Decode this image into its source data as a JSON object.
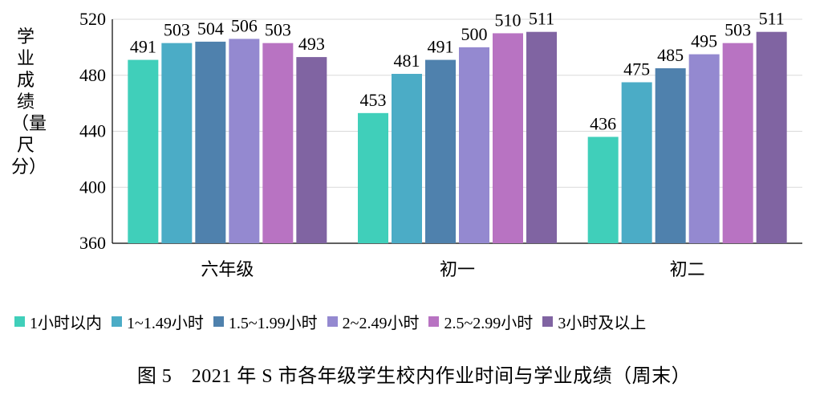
{
  "chart_data": {
    "type": "bar",
    "categories": [
      "六年级",
      "初一",
      "初二"
    ],
    "series": [
      {
        "name": "1小时以内",
        "color": "#40CFBA",
        "values": [
          491,
          453,
          436
        ]
      },
      {
        "name": "1~1.49小时",
        "color": "#4BACC6",
        "values": [
          503,
          481,
          475
        ]
      },
      {
        "name": "1.5~1.99小时",
        "color": "#4F81AD",
        "values": [
          504,
          491,
          485
        ]
      },
      {
        "name": "2~2.49小时",
        "color": "#9489D0",
        "values": [
          506,
          500,
          495
        ]
      },
      {
        "name": "2.5~2.99小时",
        "color": "#B873C2",
        "values": [
          503,
          510,
          503
        ]
      },
      {
        "name": "3小时及以上",
        "color": "#8064A2",
        "values": [
          493,
          511,
          511
        ]
      }
    ],
    "ylabel": "学业成绩（量尺分）",
    "ylim": [
      360,
      520
    ],
    "yticks": [
      360,
      400,
      440,
      480,
      520
    ],
    "grid": true,
    "legend_position": "bottom"
  },
  "caption": "图 5　2021 年 S 市各年级学生校内作业时间与学业成绩（周末）"
}
